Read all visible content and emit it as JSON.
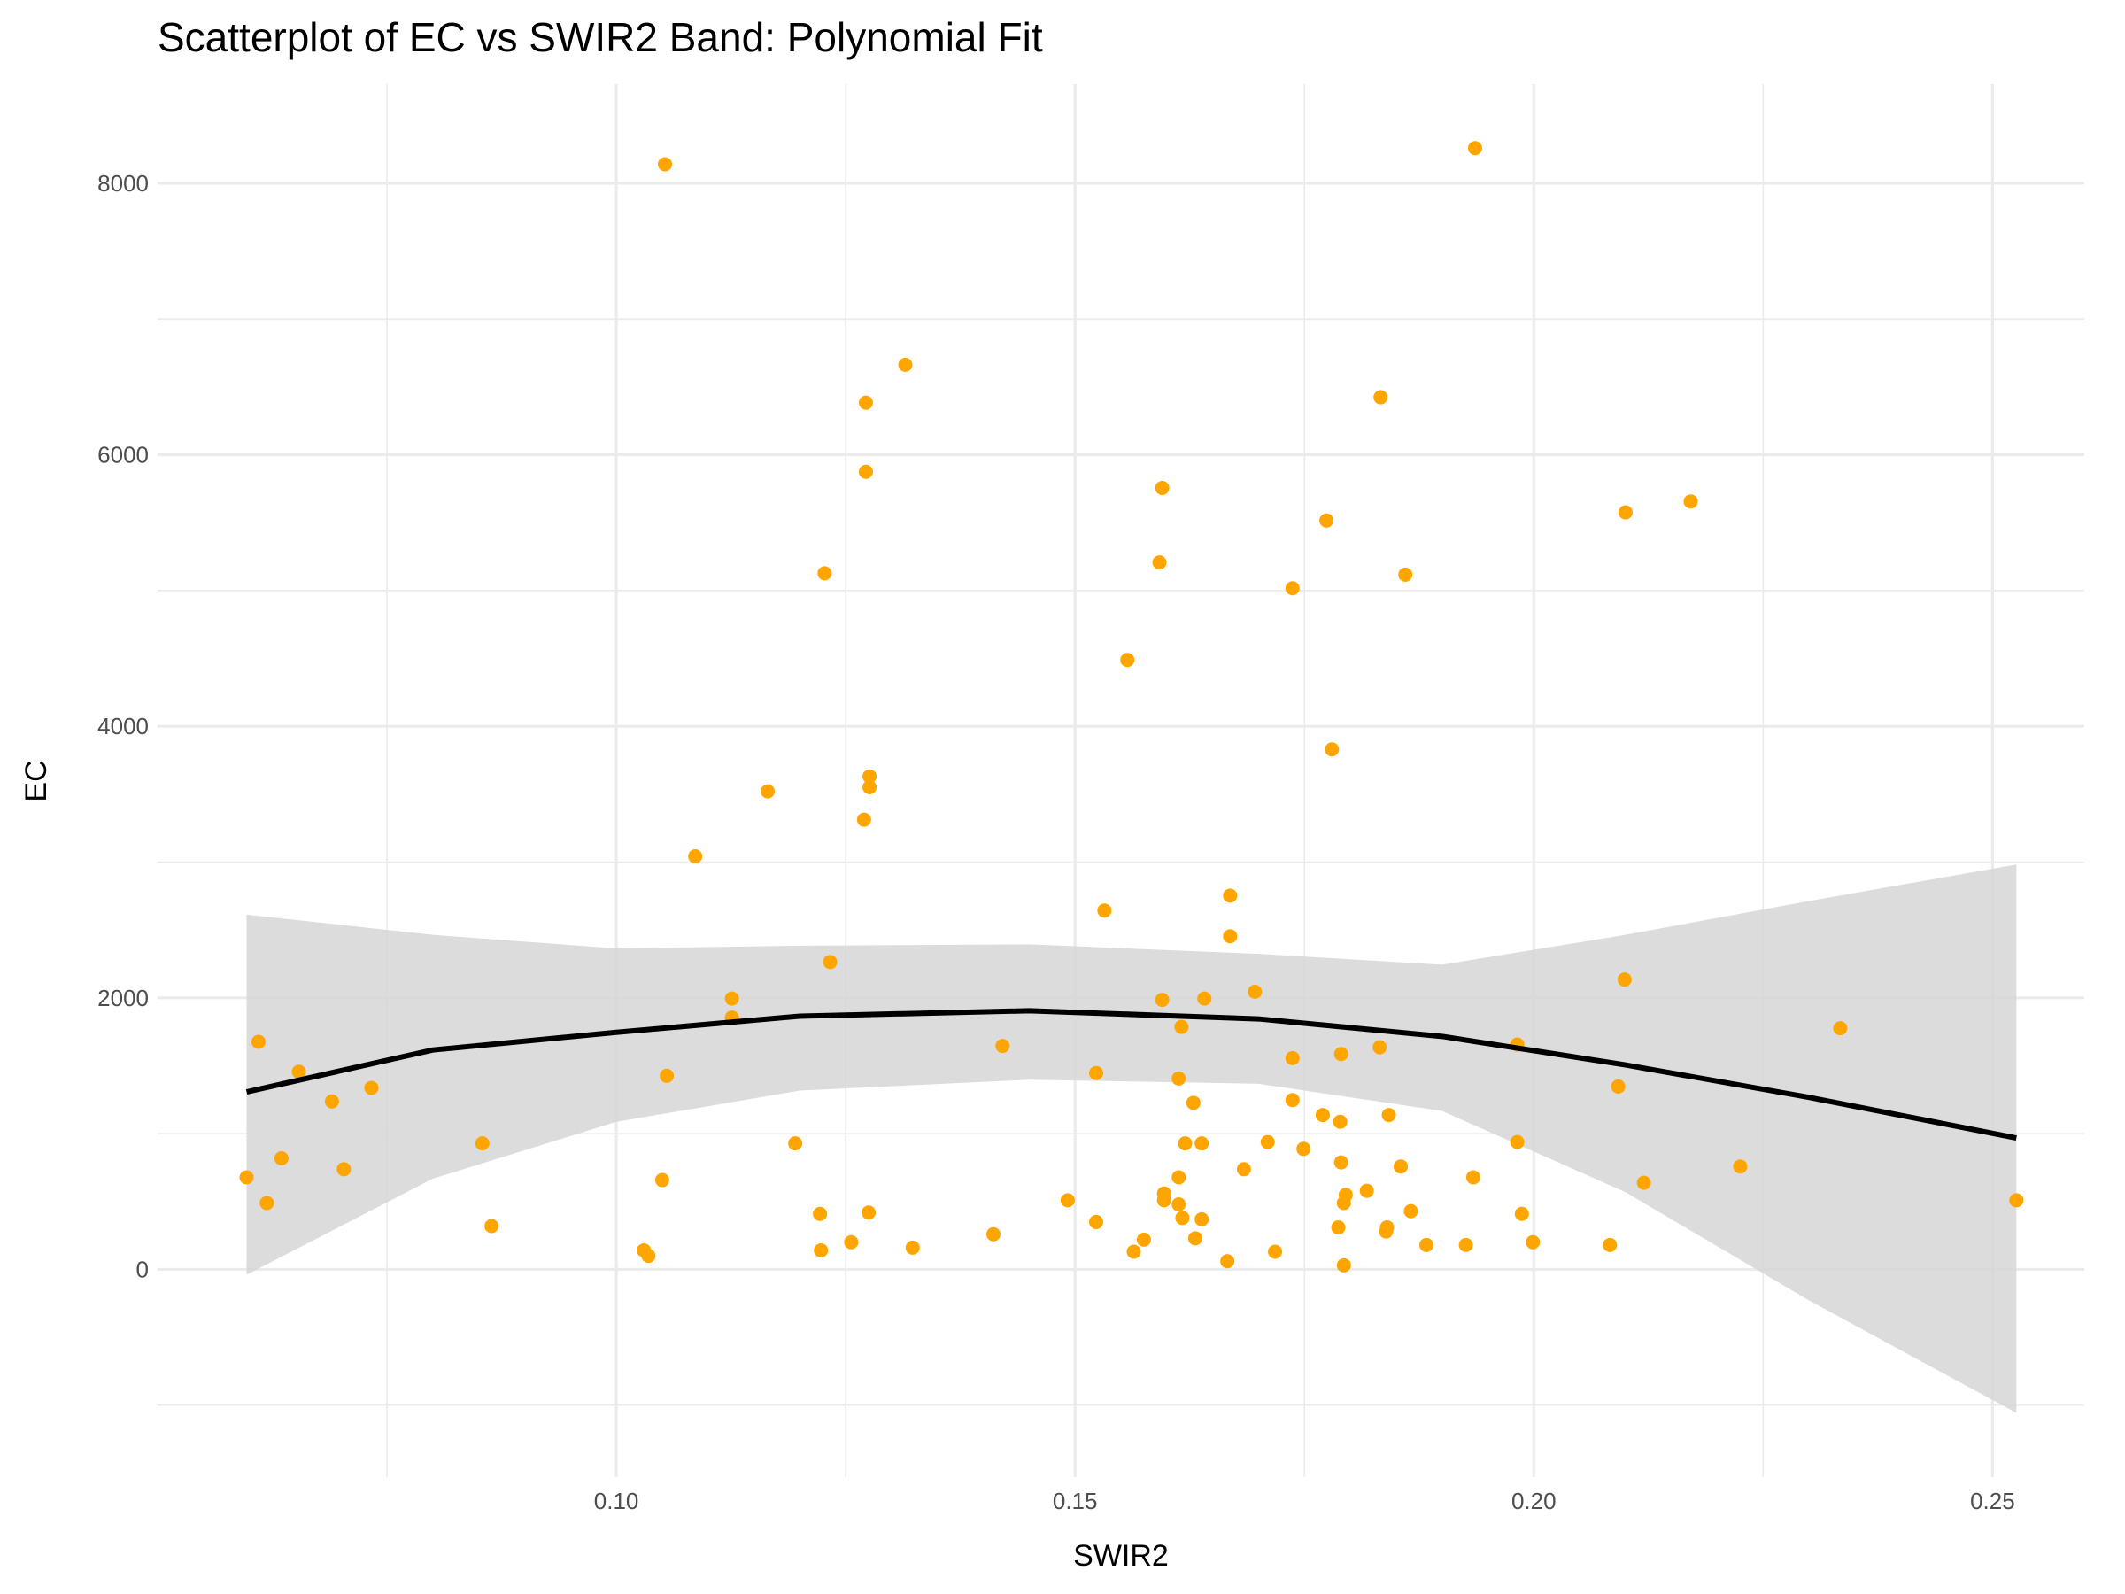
{
  "chart_data": {
    "type": "scatter",
    "title": "Scatterplot of EC vs SWIR2 Band: Polynomial Fit",
    "x_label": "SWIR2",
    "y_label": "EC",
    "xlim": [
      0.05,
      0.26
    ],
    "ylim": [
      -1530,
      8730
    ],
    "xticks": [
      {
        "value": 0.1,
        "label": "0.10"
      },
      {
        "value": 0.15,
        "label": "0.15"
      },
      {
        "value": 0.2,
        "label": "0.20"
      },
      {
        "value": 0.25,
        "label": "0.25"
      }
    ],
    "yticks": [
      0,
      2000,
      4000,
      6000,
      8000
    ],
    "grid": true,
    "color": "#FFA500",
    "x": [
      0.0597,
      0.061,
      0.0619,
      0.0635,
      0.0654,
      0.069,
      0.0703,
      0.0733,
      0.0854,
      0.0864,
      0.103,
      0.1035,
      0.105,
      0.1053,
      0.1055,
      0.1086,
      0.1126,
      0.1126,
      0.1165,
      0.1195,
      0.1222,
      0.1223,
      0.1227,
      0.1233,
      0.1256,
      0.1272,
      0.1272,
      0.127,
      0.1276,
      0.1276,
      0.1275,
      0.1315,
      0.1323,
      0.1411,
      0.1421,
      0.1492,
      0.1523,
      0.1523,
      0.1532,
      0.1557,
      0.1564,
      0.1575,
      0.1592,
      0.1595,
      0.1595,
      0.1597,
      0.1597,
      0.1613,
      0.1613,
      0.1613,
      0.1616,
      0.1617,
      0.162,
      0.1629,
      0.1631,
      0.1638,
      0.1638,
      0.1641,
      0.1666,
      0.1669,
      0.1669,
      0.1684,
      0.1696,
      0.171,
      0.1718,
      0.1737,
      0.1737,
      0.1737,
      0.1749,
      0.177,
      0.1774,
      0.178,
      0.1787,
      0.1789,
      0.179,
      0.179,
      0.1793,
      0.1793,
      0.1795,
      0.1818,
      0.1832,
      0.1833,
      0.1839,
      0.184,
      0.1842,
      0.1855,
      0.186,
      0.1866,
      0.1883,
      0.1926,
      0.1934,
      0.1936,
      0.1982,
      0.1982,
      0.1987,
      0.1999,
      0.2083,
      0.2092,
      0.2099,
      0.21,
      0.212,
      0.2171,
      0.2225,
      0.2334,
      0.2526
    ],
    "values": [
      678,
      1676,
      489,
      818,
      1456,
      1237,
      738,
      1337,
      928,
      319,
      140,
      100,
      658,
      8140,
      1426,
      3042,
      1995,
      1855,
      3521,
      928,
      409,
      140,
      5127,
      2264,
      200,
      6384,
      5875,
      3312,
      3631,
      3551,
      419,
      6663,
      160,
      259,
      1646,
      509,
      1446,
      349,
      2643,
      4489,
      130,
      219,
      5207,
      5756,
      1985,
      559,
      509,
      1406,
      678,
      479,
      1786,
      379,
      928,
      1227,
      229,
      369,
      928,
      1995,
      60,
      2753,
      2454,
      738,
      2045,
      938,
      130,
      5017,
      1556,
      1247,
      888,
      1137,
      5516,
      3830,
      309,
      1087,
      1586,
      788,
      30,
      489,
      549,
      579,
      1636,
      6424,
      279,
      309,
      1137,
      758,
      5117,
      429,
      180,
      180,
      678,
      8259,
      1656,
      938,
      409,
      200,
      180,
      1347,
      2135,
      5576,
      638,
      5656,
      758,
      1776,
      509
    ],
    "fit": {
      "x": [
        0.0597,
        0.08,
        0.1,
        0.12,
        0.145,
        0.17,
        0.19,
        0.21,
        0.23,
        0.2526
      ],
      "values": [
        1307,
        1616,
        1746,
        1865,
        1905,
        1845,
        1716,
        1506,
        1267,
        968
      ],
      "upper": [
        2613,
        2464,
        2364,
        2384,
        2394,
        2324,
        2244,
        2464,
        2713,
        2982
      ],
      "lower": [
        -40,
        668,
        1087,
        1317,
        1397,
        1367,
        1167,
        569,
        -229,
        -1057
      ],
      "color": "#000000",
      "band_color": "#d6d6d6"
    }
  }
}
